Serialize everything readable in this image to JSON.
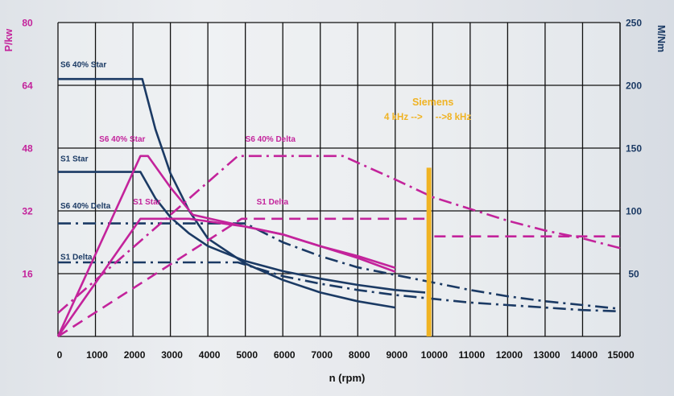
{
  "chart_data": {
    "type": "line",
    "y_left": {
      "label": "P/kw",
      "ticks": [
        "16",
        "32",
        "48",
        "64",
        "80"
      ],
      "ylim": [
        0,
        80
      ],
      "color": "#c3239b"
    },
    "y_right": {
      "label": "M/Nm",
      "ticks": [
        "50",
        "100",
        "150",
        "200",
        "250"
      ],
      "ylim": [
        0,
        250
      ],
      "color": "#1b3a64"
    },
    "x_axis": {
      "label": "n (rpm)",
      "xlim": [
        0,
        15000
      ],
      "ticks": [
        {
          "value": 0,
          "label": "0"
        },
        {
          "value": 1000,
          "label": "1000"
        },
        {
          "value": 2000,
          "label": "2000"
        },
        {
          "value": 3000,
          "label": "3000"
        },
        {
          "value": 4000,
          "label": "4000"
        },
        {
          "value": 5000,
          "label": "5000"
        },
        {
          "value": 6000,
          "label": "6000"
        },
        {
          "value": 7000,
          "label": "7000"
        },
        {
          "value": 8000,
          "label": "8000"
        },
        {
          "value": 9000,
          "label": "9000"
        },
        {
          "value": 10000,
          "label": "10000"
        },
        {
          "value": 11000,
          "label": "11000"
        },
        {
          "value": 12000,
          "label": "12000"
        },
        {
          "value": 13000,
          "label": "13000"
        },
        {
          "value": 14000,
          "label": "14000"
        },
        {
          "value": 15000,
          "label": "15000"
        }
      ]
    },
    "grid": true,
    "series": [
      {
        "name": "S6 40% Star",
        "axis": "right",
        "color": "#1b3a64",
        "dash": "solid",
        "points": [
          [
            0,
            205
          ],
          [
            2250,
            205
          ],
          [
            2600,
            165
          ],
          [
            3000,
            130
          ],
          [
            3500,
            100
          ],
          [
            4000,
            78
          ],
          [
            5000,
            58
          ],
          [
            6000,
            45
          ],
          [
            7000,
            35
          ],
          [
            8000,
            28
          ],
          [
            9000,
            23
          ]
        ]
      },
      {
        "name": "S1 Star",
        "axis": "right",
        "color": "#1b3a64",
        "dash": "solid",
        "points": [
          [
            0,
            131
          ],
          [
            2200,
            131
          ],
          [
            2600,
            110
          ],
          [
            3000,
            95
          ],
          [
            3500,
            82
          ],
          [
            4000,
            72
          ],
          [
            5000,
            60
          ],
          [
            6000,
            52
          ],
          [
            7000,
            46
          ],
          [
            8000,
            41
          ],
          [
            9000,
            37
          ],
          [
            9800,
            35
          ]
        ]
      },
      {
        "name": "S6 40% Delta",
        "axis": "right",
        "color": "#1b3a64",
        "dash": "dashdot",
        "points": [
          [
            0,
            90
          ],
          [
            5000,
            90
          ],
          [
            6000,
            75
          ],
          [
            7000,
            64
          ],
          [
            8000,
            55
          ],
          [
            9000,
            49
          ],
          [
            10000,
            43
          ],
          [
            11000,
            37
          ],
          [
            12000,
            32
          ],
          [
            13000,
            28
          ],
          [
            14000,
            25
          ],
          [
            15000,
            22
          ]
        ]
      },
      {
        "name": "S1 Delta",
        "axis": "right",
        "color": "#1b3a64",
        "dash": "dashdot",
        "points": [
          [
            0,
            59
          ],
          [
            4800,
            59
          ],
          [
            6000,
            48
          ],
          [
            7000,
            42
          ],
          [
            8000,
            37
          ],
          [
            9000,
            33
          ],
          [
            10000,
            30
          ],
          [
            11000,
            27
          ],
          [
            12000,
            25
          ],
          [
            13000,
            23
          ],
          [
            14000,
            21
          ],
          [
            15000,
            20
          ]
        ]
      },
      {
        "name": "S6 40% Star",
        "axis": "left",
        "color": "#c3239b",
        "dash": "solid",
        "points": [
          [
            0,
            0
          ],
          [
            2200,
            46
          ],
          [
            2400,
            46
          ],
          [
            3000,
            38
          ],
          [
            3600,
            31
          ],
          [
            5000,
            28
          ],
          [
            6000,
            26
          ],
          [
            7000,
            23
          ],
          [
            8000,
            20
          ],
          [
            9000,
            16.5
          ]
        ]
      },
      {
        "name": "S1 Star",
        "axis": "left",
        "color": "#c3239b",
        "dash": "solid",
        "points": [
          [
            0,
            0
          ],
          [
            2200,
            30
          ],
          [
            3500,
            30
          ],
          [
            5000,
            28
          ],
          [
            6000,
            26
          ],
          [
            7000,
            23
          ],
          [
            8000,
            20.5
          ],
          [
            9000,
            17.5
          ]
        ]
      },
      {
        "name": "S6 40% Delta",
        "axis": "left",
        "color": "#c3239b",
        "dash": "dashdot",
        "points": [
          [
            0,
            6
          ],
          [
            4800,
            46
          ],
          [
            7600,
            46
          ],
          [
            9000,
            40
          ],
          [
            10000,
            35.5
          ],
          [
            11000,
            32.5
          ],
          [
            12000,
            29.5
          ],
          [
            13000,
            27
          ],
          [
            14000,
            25
          ],
          [
            15000,
            22.5
          ]
        ]
      },
      {
        "name": "S1 Delta",
        "axis": "left",
        "color": "#c3239b",
        "dash": "dashed",
        "points": [
          [
            0,
            0
          ],
          [
            4900,
            30
          ],
          [
            9850,
            30
          ],
          [
            9950,
            25.5
          ],
          [
            15000,
            25.5
          ]
        ]
      }
    ],
    "labels": [
      {
        "text": "S6 40% Star",
        "color": "#1b3a64",
        "x": 70,
        "y": 67
      },
      {
        "text": "S1 Star",
        "color": "#1b3a64",
        "x": 70,
        "y": 43
      },
      {
        "text": "S6 40% Delta",
        "color": "#1b3a64",
        "x": 70,
        "y": 31
      },
      {
        "text": "S1 Delta",
        "color": "#1b3a64",
        "x": 70,
        "y": 18
      },
      {
        "text": "S6 40% Star",
        "color": "#c3239b",
        "x": 1100,
        "y": 48
      },
      {
        "text": "S1 Star",
        "color": "#c3239b",
        "x": 2000,
        "y": 32
      },
      {
        "text": "S6 40% Delta",
        "color": "#c3239b",
        "x": 5000,
        "y": 48
      },
      {
        "text": "S1 Delta",
        "color": "#c3239b",
        "x": 5300,
        "y": 32
      }
    ],
    "marker": {
      "x": 9900,
      "color": "#f0b323",
      "title": "Siemens",
      "left_text": "4 kHz -->",
      "right_text": "-->8 kHz"
    }
  }
}
